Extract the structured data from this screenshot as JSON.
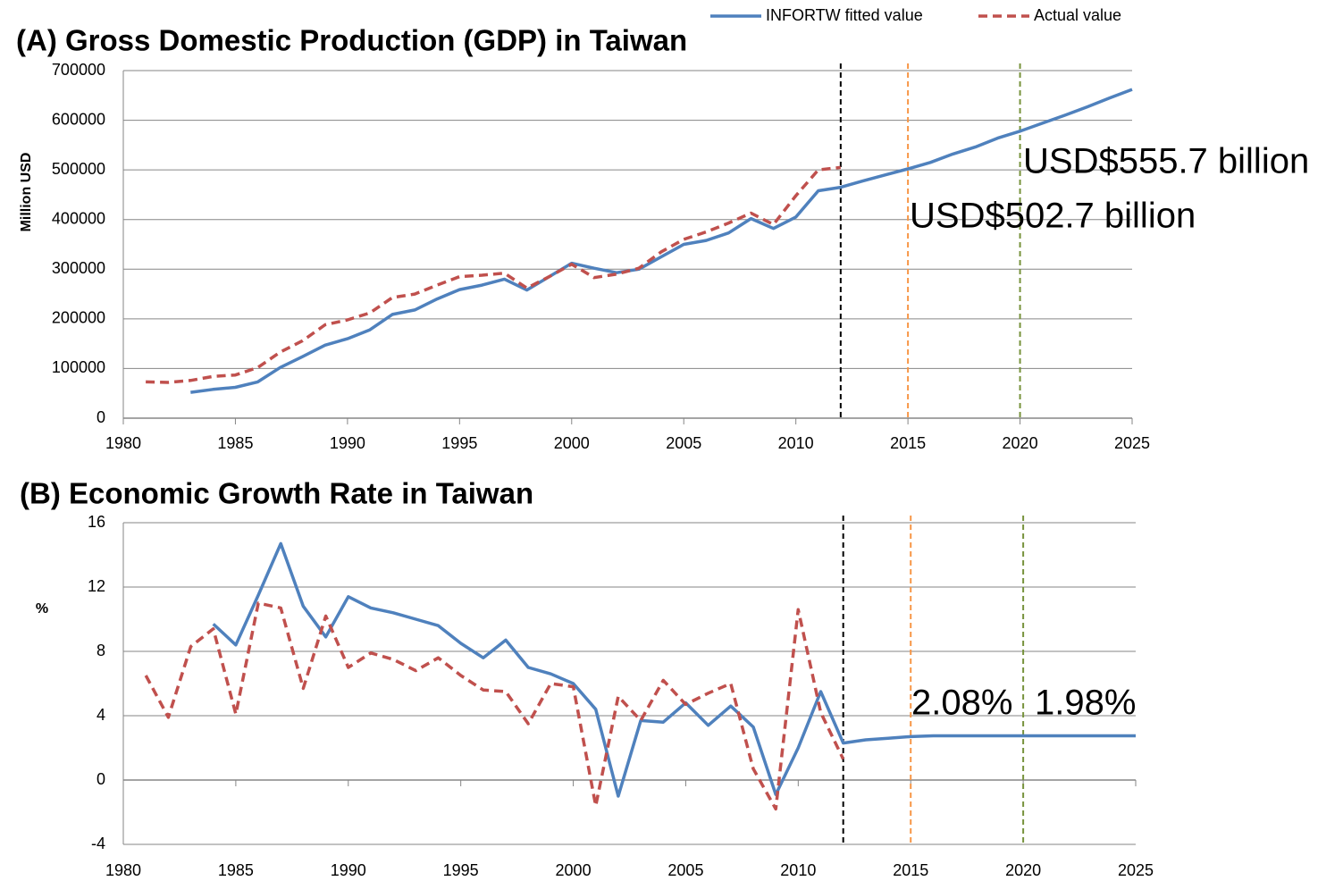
{
  "chart_data": [
    {
      "type": "line",
      "title": "(A) Gross Domestic Production (GDP) in Taiwan",
      "y_label": "Million USD",
      "x": [
        1981,
        1982,
        1983,
        1984,
        1985,
        1986,
        1987,
        1988,
        1989,
        1990,
        1991,
        1992,
        1993,
        1994,
        1995,
        1996,
        1997,
        1998,
        1999,
        2000,
        2001,
        2002,
        2003,
        2004,
        2005,
        2006,
        2007,
        2008,
        2009,
        2010,
        2011,
        2012,
        2013,
        2014,
        2015,
        2016,
        2017,
        2018,
        2019,
        2020,
        2021,
        2022,
        2023,
        2024,
        2025
      ],
      "series": [
        {
          "name": "INFORTW fitted value",
          "color": "#4f81bd",
          "dashed": false,
          "values": [
            null,
            null,
            52000,
            58000,
            62000,
            73000,
            102000,
            124000,
            147000,
            160000,
            178000,
            209000,
            218000,
            240000,
            259000,
            268000,
            280000,
            258000,
            285000,
            312000,
            302000,
            293000,
            300000,
            325000,
            350000,
            358000,
            373000,
            402000,
            382000,
            405000,
            458000,
            465000,
            478000,
            490000,
            502000,
            515000,
            532000,
            546000,
            564000,
            578000,
            594000,
            610000,
            627000,
            645000,
            662000
          ]
        },
        {
          "name": "Actual value",
          "color": "#c0504d",
          "dashed": true,
          "values": [
            73000,
            72000,
            76000,
            84000,
            87000,
            102000,
            133000,
            156000,
            188000,
            198000,
            212000,
            243000,
            250000,
            268000,
            285000,
            288000,
            292000,
            262000,
            285000,
            310000,
            283000,
            290000,
            302000,
            335000,
            360000,
            375000,
            393000,
            413000,
            390000,
            448000,
            500000,
            505000,
            null,
            null,
            null,
            null,
            null,
            null,
            null,
            null,
            null,
            null,
            null,
            null,
            null
          ]
        }
      ],
      "xlim": [
        1980,
        2025
      ],
      "xticks": [
        1980,
        1985,
        1990,
        1995,
        2000,
        2005,
        2010,
        2015,
        2020,
        2025
      ],
      "ylim": [
        0,
        700000
      ],
      "yticks": [
        0,
        100000,
        200000,
        300000,
        400000,
        500000,
        600000,
        700000
      ],
      "grid": true,
      "legend": "top-right",
      "vlines": [
        {
          "x": 2012,
          "color": "#000000"
        },
        {
          "x": 2015,
          "color": "#f79646"
        },
        {
          "x": 2020,
          "color": "#77933c"
        }
      ],
      "annotations": [
        {
          "text": "USD$555.7 billion",
          "color": "#4f6228"
        },
        {
          "text": "USD$502.7 billion",
          "color": "#984807"
        }
      ]
    },
    {
      "type": "line",
      "title": "(B) Economic Growth Rate in Taiwan",
      "y_label": "%",
      "x": [
        1981,
        1982,
        1983,
        1984,
        1985,
        1986,
        1987,
        1988,
        1989,
        1990,
        1991,
        1992,
        1993,
        1994,
        1995,
        1996,
        1997,
        1998,
        1999,
        2000,
        2001,
        2002,
        2003,
        2004,
        2005,
        2006,
        2007,
        2008,
        2009,
        2010,
        2011,
        2012,
        2013,
        2014,
        2015,
        2016,
        2017,
        2018,
        2019,
        2020,
        2021,
        2022,
        2023,
        2024,
        2025
      ],
      "series": [
        {
          "color": "#4f81bd",
          "dashed": false,
          "values": [
            null,
            null,
            null,
            9.7,
            8.4,
            11.5,
            14.7,
            10.8,
            8.9,
            11.4,
            10.7,
            10.4,
            10.0,
            9.6,
            8.5,
            7.6,
            8.7,
            7.0,
            6.6,
            6.0,
            4.4,
            -1.0,
            3.7,
            3.6,
            4.8,
            3.4,
            4.6,
            3.3,
            -0.9,
            2.0,
            5.5,
            2.3,
            2.5,
            2.6,
            2.7,
            2.75,
            2.75,
            2.75,
            2.75,
            2.75,
            2.75,
            2.75,
            2.75,
            2.75,
            2.75
          ]
        },
        {
          "color": "#c0504d",
          "dashed": true,
          "values": [
            6.5,
            3.9,
            8.3,
            9.4,
            4.1,
            11.0,
            10.7,
            5.7,
            10.2,
            7.0,
            7.9,
            7.5,
            6.8,
            7.6,
            6.5,
            5.6,
            5.5,
            3.5,
            6.0,
            5.8,
            -1.6,
            5.2,
            3.7,
            6.2,
            4.7,
            5.4,
            6.0,
            0.7,
            -1.8,
            10.6,
            4.2,
            1.3,
            null,
            null,
            null,
            null,
            null,
            null,
            null,
            null,
            null,
            null,
            null,
            null,
            null
          ]
        }
      ],
      "xlim": [
        1980,
        2025
      ],
      "xticks": [
        1980,
        1985,
        1990,
        1995,
        2000,
        2005,
        2010,
        2015,
        2020,
        2025
      ],
      "ylim": [
        -4,
        16
      ],
      "yticks": [
        -4,
        0,
        4,
        8,
        12,
        16
      ],
      "grid": true,
      "vlines": [
        {
          "x": 2012,
          "color": "#000000"
        },
        {
          "x": 2015,
          "color": "#f79646"
        },
        {
          "x": 2020,
          "color": "#77933c"
        }
      ],
      "annotations": [
        {
          "text": "2.08%",
          "color": "#984807"
        },
        {
          "text": "1.98%",
          "color": "#4f6228"
        }
      ]
    }
  ]
}
